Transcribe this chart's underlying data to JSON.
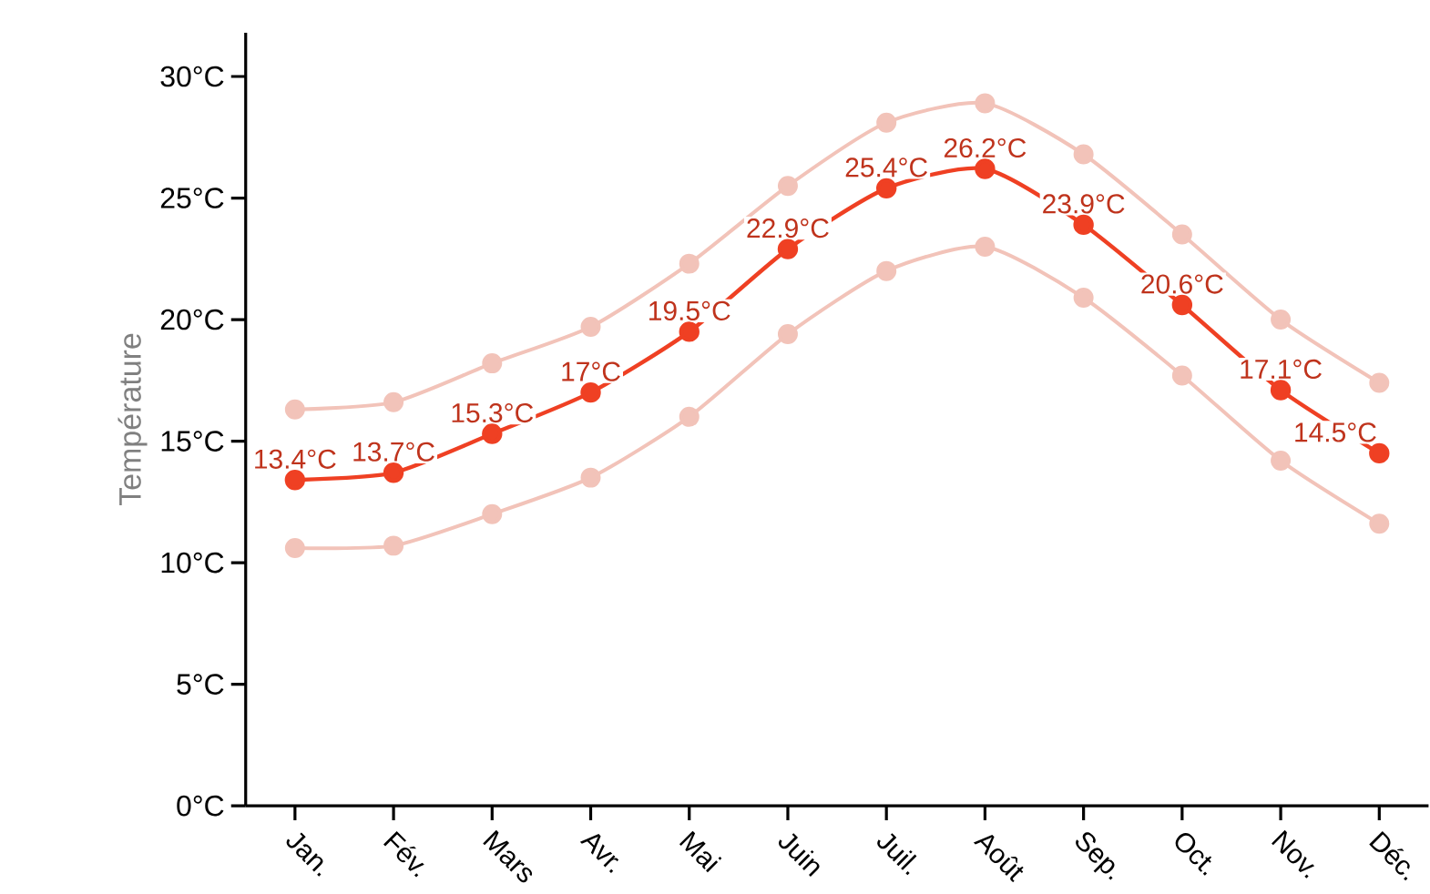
{
  "chart_data": {
    "type": "line",
    "ylabel": "Température",
    "categories": [
      "Jan.",
      "Fév.",
      "Mars",
      "Avr.",
      "Mai",
      "Juin",
      "Juil.",
      "Août",
      "Sep.",
      "Oct.",
      "Nov.",
      "Déc."
    ],
    "ylim": [
      0,
      31.8
    ],
    "yticks": [
      {
        "value": 0,
        "label": "0°C"
      },
      {
        "value": 5,
        "label": "5°C"
      },
      {
        "value": 10,
        "label": "10°C"
      },
      {
        "value": 15,
        "label": "15°C"
      },
      {
        "value": 20,
        "label": "20°C"
      },
      {
        "value": 25,
        "label": "25°C"
      },
      {
        "value": 30,
        "label": "30°C"
      }
    ],
    "marker": "circle",
    "line_style": "solid",
    "series": [
      {
        "color": "#f2c3b9",
        "values": [
          16.3,
          16.6,
          18.2,
          19.7,
          22.3,
          25.5,
          28.1,
          28.9,
          26.8,
          23.5,
          20.0,
          17.4
        ]
      },
      {
        "color": "#f2c3b9",
        "values": [
          10.6,
          10.7,
          12.0,
          13.5,
          16.0,
          19.4,
          22.0,
          23.0,
          20.9,
          17.7,
          14.2,
          11.6
        ]
      },
      {
        "color": "#ef4023",
        "values": [
          13.4,
          13.7,
          15.3,
          17.0,
          19.5,
          22.9,
          25.4,
          26.2,
          23.9,
          20.6,
          17.1,
          14.5
        ],
        "value_labels": [
          "13.4°C",
          "13.7°C",
          "15.3°C",
          "17°C",
          "19.5°C",
          "22.9°C",
          "25.4°C",
          "26.2°C",
          "23.9°C",
          "20.6°C",
          "17.1°C",
          "14.5°C"
        ]
      }
    ]
  }
}
